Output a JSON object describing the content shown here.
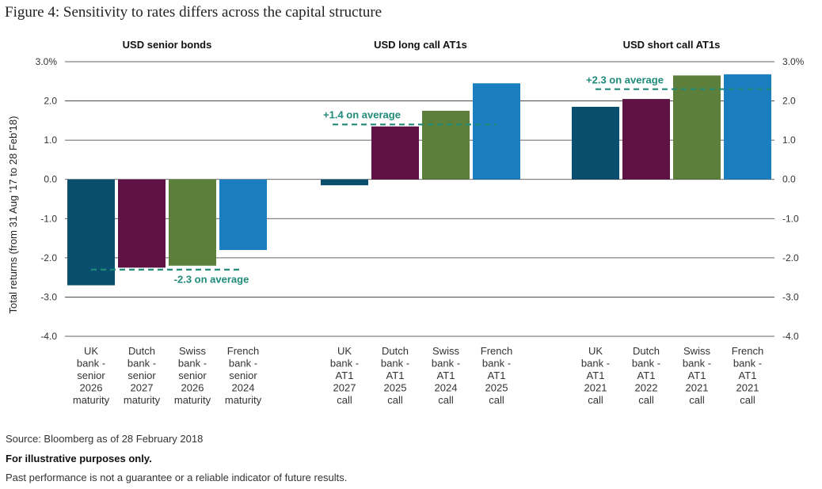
{
  "figure_title": "Figure 4: Sensitivity to rates differs across the capital structure",
  "footnotes": {
    "source": "Source: Bloomberg as of 28 February 2018",
    "illustrative": "For illustrative purposes only.",
    "disclaimer": "Past performance is not a guarantee or a reliable indicator of future results."
  },
  "colors": {
    "uk": "#0b4f6f",
    "dutch": "#5f1243",
    "swiss": "#5d7f3c",
    "french": "#1b7ebe",
    "average_line": "#1f8a78",
    "grid": "#333333"
  },
  "chart_data": {
    "type": "bar",
    "ylabel": "Total returns (from 31 Aug '17 to 28 Feb'18)",
    "ylim": [
      -4.0,
      3.0
    ],
    "yticks_left": [
      "3.0%",
      "2.0",
      "1.0",
      "0.0",
      "-1.0",
      "-2.0",
      "-3.0",
      "-4.0"
    ],
    "yticks_right": [
      "3.0%",
      "2.0",
      "1.0",
      "0.0",
      "-1.0",
      "-2.0",
      "-3.0",
      "-4.0"
    ],
    "ytick_values": [
      3,
      2,
      1,
      0,
      -1,
      -2,
      -3,
      -4
    ],
    "groups": [
      {
        "title": "USD senior bonds",
        "average": -2.3,
        "average_label": "-2.3 on average",
        "bars": [
          {
            "series": "uk",
            "value": -2.7,
            "label": [
              "UK",
              "bank -",
              "senior",
              "2026",
              "maturity"
            ]
          },
          {
            "series": "dutch",
            "value": -2.25,
            "label": [
              "Dutch",
              "bank -",
              "senior",
              "2027",
              "maturity"
            ]
          },
          {
            "series": "swiss",
            "value": -2.2,
            "label": [
              "Swiss",
              "bank -",
              "senior",
              "2026",
              "maturity"
            ]
          },
          {
            "series": "french",
            "value": -1.8,
            "label": [
              "French",
              "bank -",
              "senior",
              "2024",
              "maturity"
            ]
          }
        ]
      },
      {
        "title": "USD long call AT1s",
        "average": 1.4,
        "average_label": "+1.4 on average",
        "bars": [
          {
            "series": "uk",
            "value": -0.15,
            "label": [
              "UK",
              "bank -",
              "AT1",
              "2027",
              "call"
            ]
          },
          {
            "series": "dutch",
            "value": 1.35,
            "label": [
              "Dutch",
              "bank -",
              "AT1",
              "2025",
              "call"
            ]
          },
          {
            "series": "swiss",
            "value": 1.75,
            "label": [
              "Swiss",
              "bank -",
              "AT1",
              "2024",
              "call"
            ]
          },
          {
            "series": "french",
            "value": 2.45,
            "label": [
              "French",
              "bank -",
              "AT1",
              "2025",
              "call"
            ]
          }
        ]
      },
      {
        "title": "USD short call AT1s",
        "average": 2.3,
        "average_label": "+2.3 on average",
        "bars": [
          {
            "series": "uk",
            "value": 1.85,
            "label": [
              "UK",
              "bank -",
              "AT1",
              "2021",
              "call"
            ]
          },
          {
            "series": "dutch",
            "value": 2.05,
            "label": [
              "Dutch",
              "bank -",
              "AT1",
              "2022",
              "call"
            ]
          },
          {
            "series": "swiss",
            "value": 2.65,
            "label": [
              "Swiss",
              "bank -",
              "AT1",
              "2021",
              "call"
            ]
          },
          {
            "series": "french",
            "value": 2.68,
            "label": [
              "French",
              "bank -",
              "AT1",
              "2021",
              "call"
            ]
          }
        ]
      }
    ]
  }
}
